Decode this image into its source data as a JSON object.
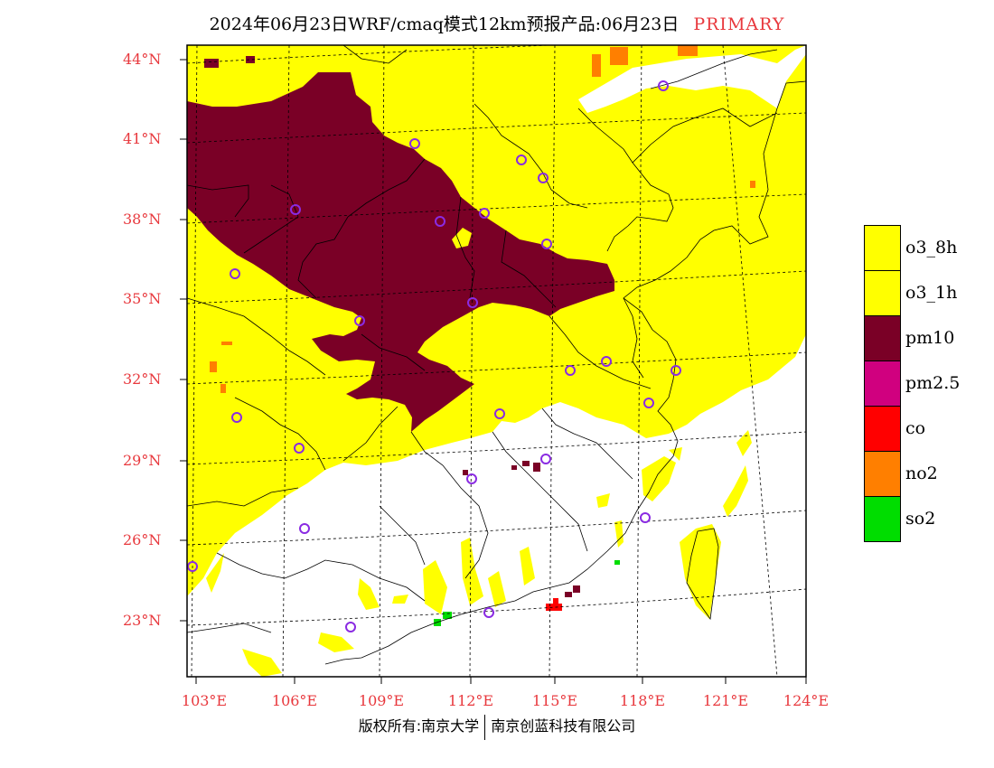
{
  "title": {
    "text": "2024年06月23日WRF/cmaq模式12km预报产品:06月23日",
    "tag": "PRIMARY"
  },
  "map": {
    "lat_labels": [
      "44°N",
      "41°N",
      "38°N",
      "35°N",
      "32°N",
      "29°N",
      "26°N",
      "23°N"
    ],
    "lon_labels": [
      "103°E",
      "106°E",
      "109°E",
      "112°E",
      "115°E",
      "118°E",
      "121°E",
      "124°E"
    ],
    "extent": {
      "lon_min": 103,
      "lon_max": 124,
      "lat_min": 21.2,
      "lat_max": 44.5
    }
  },
  "legend": {
    "items": [
      {
        "label": "o3_8h",
        "color": "#ffff00"
      },
      {
        "label": "o3_1h",
        "color": "#ffff00"
      },
      {
        "label": "pm10",
        "color": "#7a0026"
      },
      {
        "label": "pm2.5",
        "color": "#d0007f"
      },
      {
        "label": "co",
        "color": "#ff0000"
      },
      {
        "label": "no2",
        "color": "#ff7f00"
      },
      {
        "label": "so2",
        "color": "#00dd00"
      }
    ]
  },
  "stations_color": "#8a2be2",
  "footer": {
    "left": "版权所有:南京大学",
    "right": "南京创蓝科技有限公司"
  }
}
